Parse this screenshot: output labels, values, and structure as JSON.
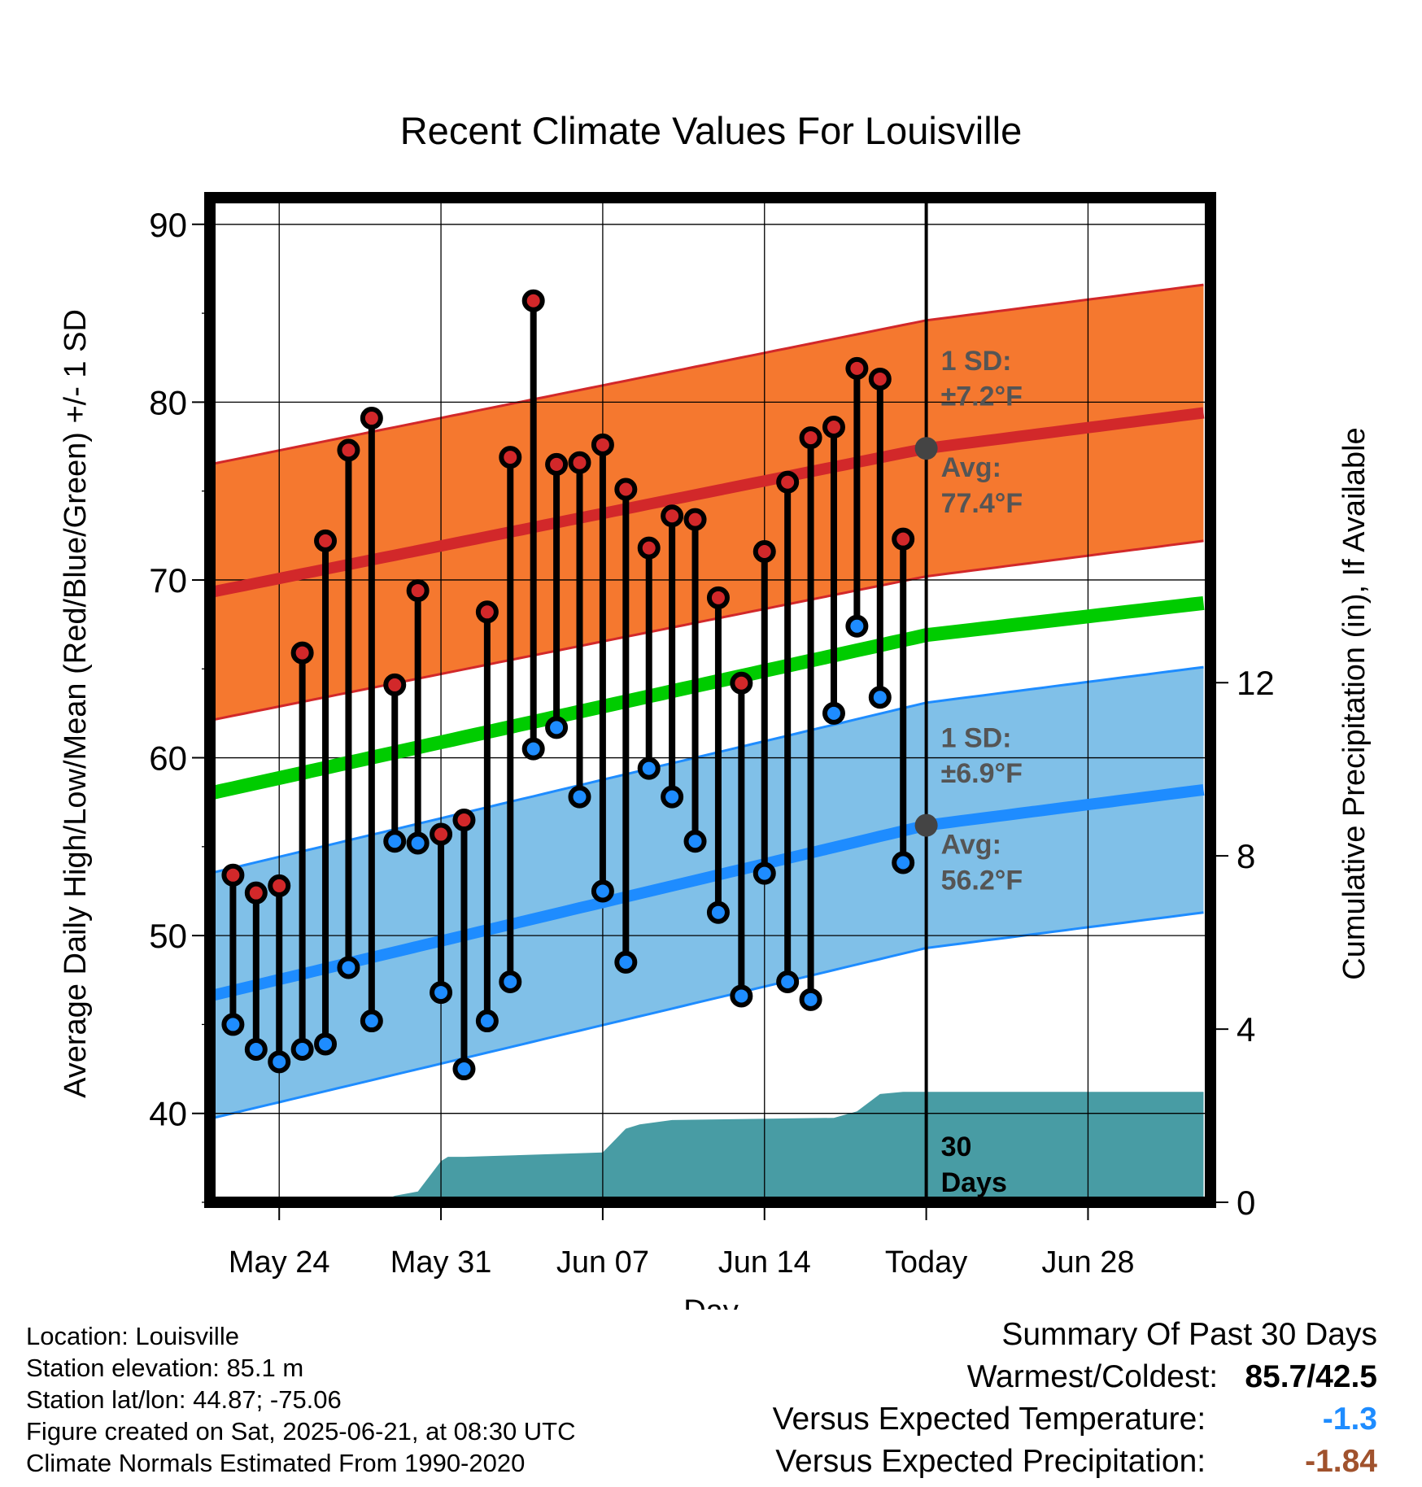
{
  "chart_data": {
    "type": "line",
    "title": "Recent Climate Values For Louisville",
    "xlabel": "Day",
    "ylabel": "Average Daily High/Low/Mean (Red/Blue/Green) +/- 1 SD",
    "y2label": "Cumulative Precipitation (in), If Available",
    "ylim": [
      35,
      91.5
    ],
    "y2lim": [
      0,
      23.2
    ],
    "yticks": [
      40,
      50,
      60,
      70,
      80,
      90
    ],
    "y2ticks": [
      0,
      4,
      8,
      12
    ],
    "xlim": [
      0,
      43.3
    ],
    "xticks": [
      {
        "x": 3,
        "label": "May 24"
      },
      {
        "x": 10,
        "label": "May 31"
      },
      {
        "x": 17,
        "label": "Jun 07"
      },
      {
        "x": 24,
        "label": "Jun 14"
      },
      {
        "x": 31,
        "label": "Today"
      },
      {
        "x": 38,
        "label": "Jun 28"
      }
    ],
    "days": [
      1,
      2,
      3,
      4,
      5,
      6,
      7,
      8,
      9,
      10,
      11,
      12,
      13,
      14,
      15,
      16,
      17,
      18,
      19,
      20,
      21,
      22,
      23,
      24,
      25,
      26,
      27,
      28,
      29,
      30
    ],
    "highs": [
      53.4,
      52.4,
      52.8,
      65.9,
      72.2,
      77.3,
      79.1,
      64.1,
      69.4,
      55.7,
      56.5,
      68.2,
      76.9,
      85.7,
      76.5,
      76.6,
      77.6,
      75.1,
      71.8,
      73.6,
      73.4,
      69.0,
      64.2,
      71.6,
      75.5,
      78.0,
      78.6,
      81.9,
      81.3,
      72.3
    ],
    "lows": [
      45.0,
      43.6,
      42.9,
      43.6,
      43.9,
      48.2,
      45.2,
      55.3,
      55.2,
      46.8,
      42.5,
      45.2,
      47.4,
      60.5,
      61.7,
      57.8,
      52.5,
      48.5,
      59.4,
      57.8,
      55.3,
      51.3,
      46.6,
      53.5,
      47.4,
      46.4,
      62.5,
      67.4,
      63.4,
      54.1
    ],
    "normal_high": {
      "x": [
        0,
        31,
        43
      ],
      "values": [
        69.3,
        77.4,
        79.4
      ],
      "sd": 7.2
    },
    "normal_low": {
      "x": [
        0,
        31,
        43
      ],
      "values": [
        46.6,
        56.2,
        58.2
      ],
      "sd": 6.9
    },
    "normal_mean": {
      "x": [
        0,
        31,
        43
      ],
      "values": [
        58.0,
        66.9,
        68.7
      ]
    },
    "precip_cumulative": {
      "x": [
        0,
        7.3,
        8,
        9,
        10,
        10.3,
        11,
        17,
        18,
        18.6,
        20,
        27,
        28,
        29,
        30,
        43
      ],
      "values": [
        0,
        0,
        0.15,
        0.25,
        0.95,
        1.05,
        1.05,
        1.15,
        1.7,
        1.8,
        1.9,
        1.95,
        2.1,
        2.5,
        2.55,
        2.55
      ]
    },
    "today_x": 31,
    "annotations": {
      "high_sd_label": "1 SD:",
      "high_sd_value": "±7.2°F",
      "high_avg_label": "Avg:",
      "high_avg_value": "77.4°F",
      "low_sd_label": "1 SD:",
      "low_sd_value": "±6.9°F",
      "low_avg_label": "Avg:",
      "low_avg_value": "56.2°F",
      "precip_period_1": "30",
      "precip_period_2": "Days"
    },
    "colors": {
      "high_band": "#f5782f",
      "high_line": "#d2282a",
      "low_band": "#80c0e8",
      "low_line": "#1e8cff",
      "mean_line": "#00cc00",
      "precip": "#489ca4",
      "high_dot": "#d2282a",
      "low_dot": "#1e8cff",
      "annotation": "#555555"
    }
  },
  "footer": {
    "location": "Location: Louisville",
    "elevation": "Station elevation: 85.1 m",
    "latlon": "Station lat/lon: 44.87; -75.06",
    "created": "Figure created on Sat, 2025-06-21, at 08:30 UTC",
    "normals": "Climate Normals Estimated From 1990-2020"
  },
  "summary": {
    "title": "Summary Of Past 30 Days",
    "warmest_coldest_label": "Warmest/Coldest:",
    "warmest_coldest_value": "85.7/42.5",
    "temp_label": "Versus Expected Temperature:",
    "temp_value": "-1.3",
    "temp_color": "#1e8cff",
    "precip_label": "Versus Expected Precipitation:",
    "precip_value": "-1.84",
    "precip_color": "#a0522d"
  }
}
